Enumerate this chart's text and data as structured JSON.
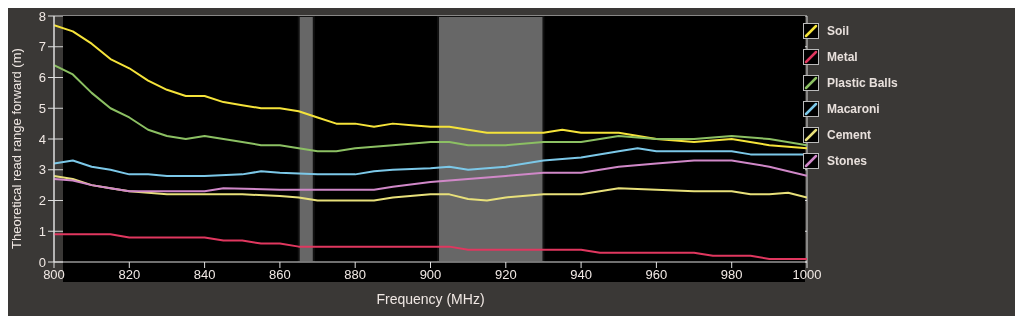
{
  "chart_data": {
    "type": "line",
    "xlabel": "Frequency (MHz)",
    "ylabel": "Theoretical read range forward (m)",
    "xlim": [
      800,
      1000
    ],
    "xticks": [
      800,
      820,
      840,
      860,
      880,
      900,
      920,
      940,
      960,
      980,
      1000
    ],
    "ylim": [
      0,
      8
    ],
    "yticks": [
      0,
      1,
      2,
      3,
      4,
      5,
      6,
      7,
      8
    ],
    "grid": true,
    "legend": "right",
    "marker": "none",
    "line_style": "solid",
    "bands": [
      {
        "axis": "x",
        "from": 865,
        "to": 869,
        "color": "#8a8a8a"
      },
      {
        "axis": "x",
        "from": 902,
        "to": 930,
        "color": "#8a8a8a"
      }
    ],
    "series": [
      {
        "name": "Soil",
        "color": "#f5e33a",
        "x": [
          800,
          805,
          810,
          815,
          820,
          825,
          830,
          835,
          840,
          845,
          850,
          855,
          860,
          865,
          870,
          875,
          880,
          885,
          890,
          895,
          900,
          905,
          910,
          915,
          920,
          930,
          935,
          940,
          950,
          960,
          970,
          980,
          990,
          1000
        ],
        "values": [
          7.7,
          7.5,
          7.1,
          6.6,
          6.3,
          5.9,
          5.6,
          5.4,
          5.4,
          5.2,
          5.1,
          5.0,
          5.0,
          4.9,
          4.7,
          4.5,
          4.5,
          4.4,
          4.5,
          4.45,
          4.4,
          4.4,
          4.3,
          4.2,
          4.2,
          4.2,
          4.3,
          4.2,
          4.2,
          4.0,
          3.9,
          4.0,
          3.8,
          3.7
        ]
      },
      {
        "name": "Metal",
        "color": "#e0375f",
        "x": [
          800,
          815,
          820,
          840,
          845,
          850,
          855,
          860,
          865,
          900,
          905,
          910,
          930,
          940,
          945,
          970,
          975,
          985,
          990,
          1000
        ],
        "values": [
          0.9,
          0.9,
          0.8,
          0.8,
          0.7,
          0.7,
          0.6,
          0.6,
          0.5,
          0.5,
          0.5,
          0.4,
          0.4,
          0.4,
          0.3,
          0.3,
          0.2,
          0.2,
          0.1,
          0.1
        ]
      },
      {
        "name": "Plastic Balls",
        "color": "#8cc063",
        "x": [
          800,
          805,
          810,
          815,
          820,
          825,
          830,
          835,
          840,
          845,
          850,
          855,
          860,
          865,
          870,
          875,
          880,
          890,
          900,
          905,
          910,
          920,
          930,
          940,
          950,
          960,
          970,
          980,
          990,
          1000
        ],
        "values": [
          6.4,
          6.1,
          5.5,
          5.0,
          4.7,
          4.3,
          4.1,
          4.0,
          4.1,
          4.0,
          3.9,
          3.8,
          3.8,
          3.7,
          3.6,
          3.6,
          3.7,
          3.8,
          3.9,
          3.9,
          3.8,
          3.8,
          3.9,
          3.9,
          4.1,
          4.0,
          4.0,
          4.1,
          4.0,
          3.8
        ]
      },
      {
        "name": "Macaroni",
        "color": "#7cc8e8",
        "x": [
          800,
          805,
          810,
          815,
          820,
          825,
          830,
          840,
          850,
          855,
          860,
          870,
          880,
          885,
          890,
          900,
          905,
          910,
          920,
          930,
          940,
          950,
          955,
          960,
          970,
          980,
          985,
          1000
        ],
        "values": [
          3.2,
          3.3,
          3.1,
          3.0,
          2.85,
          2.85,
          2.8,
          2.8,
          2.85,
          2.95,
          2.9,
          2.85,
          2.85,
          2.95,
          3.0,
          3.05,
          3.1,
          3.0,
          3.1,
          3.3,
          3.4,
          3.6,
          3.7,
          3.6,
          3.6,
          3.6,
          3.5,
          3.5
        ]
      },
      {
        "name": "Cement",
        "color": "#e8e07a",
        "x": [
          800,
          805,
          810,
          815,
          820,
          825,
          830,
          840,
          850,
          860,
          865,
          870,
          880,
          885,
          890,
          900,
          905,
          910,
          915,
          920,
          930,
          940,
          945,
          950,
          960,
          970,
          980,
          985,
          990,
          995,
          1000
        ],
        "values": [
          2.8,
          2.7,
          2.5,
          2.4,
          2.3,
          2.25,
          2.2,
          2.2,
          2.2,
          2.15,
          2.1,
          2.0,
          2.0,
          2.0,
          2.1,
          2.2,
          2.2,
          2.05,
          2.0,
          2.1,
          2.2,
          2.2,
          2.3,
          2.4,
          2.35,
          2.3,
          2.3,
          2.2,
          2.2,
          2.25,
          2.1
        ]
      },
      {
        "name": "Stones",
        "color": "#d088c8",
        "x": [
          800,
          805,
          810,
          815,
          820,
          830,
          840,
          845,
          860,
          870,
          880,
          885,
          890,
          900,
          910,
          920,
          930,
          940,
          950,
          960,
          970,
          980,
          990,
          1000
        ],
        "values": [
          2.7,
          2.65,
          2.5,
          2.4,
          2.3,
          2.3,
          2.3,
          2.4,
          2.35,
          2.35,
          2.35,
          2.35,
          2.45,
          2.6,
          2.7,
          2.8,
          2.9,
          2.9,
          3.1,
          3.2,
          3.3,
          3.3,
          3.1,
          2.8
        ]
      }
    ]
  }
}
